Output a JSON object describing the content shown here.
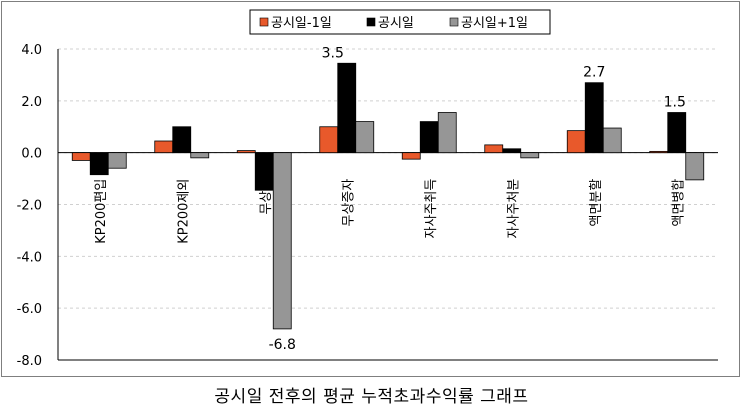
{
  "caption": "공시일 전후의 평균 누적초과수익률 그래프",
  "chart_data": {
    "type": "bar",
    "categories": [
      "KP200편입",
      "KP200제외",
      "무상감",
      "무상증자",
      "자사주취득",
      "자사주처분",
      "액면분할",
      "액면병합"
    ],
    "series": [
      {
        "name": "공시일-1일",
        "color": "#e8592b",
        "values": [
          -0.3,
          0.45,
          0.08,
          1.0,
          -0.25,
          0.3,
          0.85,
          0.05
        ]
      },
      {
        "name": "공시일",
        "color": "#000000",
        "values": [
          -0.85,
          1.0,
          -1.45,
          3.45,
          1.2,
          0.15,
          2.7,
          1.55
        ]
      },
      {
        "name": "공시일+1일",
        "color": "#969696",
        "values": [
          -0.6,
          -0.2,
          -6.8,
          1.2,
          1.55,
          -0.2,
          0.95,
          -1.05
        ]
      }
    ],
    "ylim": [
      -8.0,
      4.0
    ],
    "yticks": [
      "4.0",
      "2.0",
      "0.0",
      "-2.0",
      "-4.0",
      "-6.0",
      "-8.0"
    ],
    "grid": true,
    "legend_position": "top",
    "annotations": [
      "3.5",
      "2.7",
      "1.5",
      "-6.8"
    ]
  }
}
